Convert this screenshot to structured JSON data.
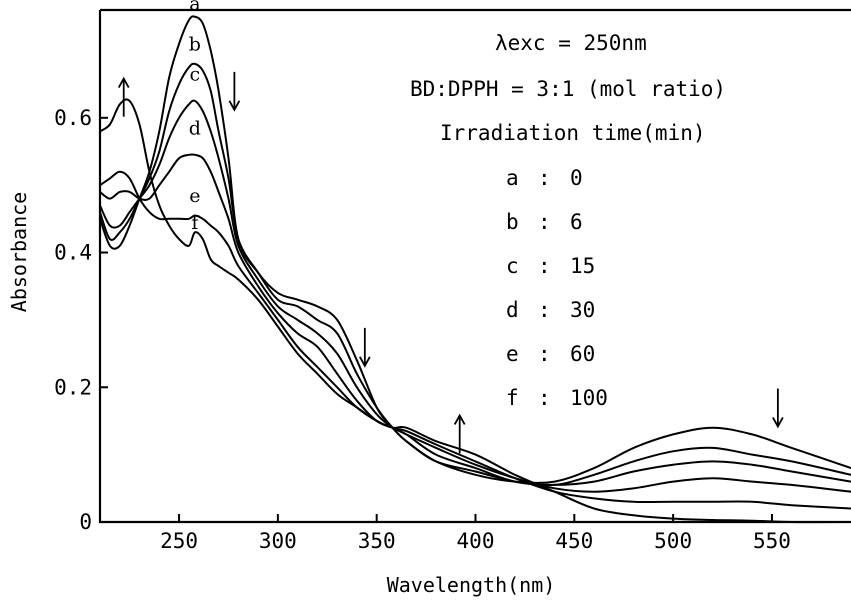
{
  "chart_data": {
    "type": "line",
    "xlabel": "Wavelength(nm)",
    "ylabel": "Absorbance",
    "xlim": [
      210,
      590
    ],
    "ylim": [
      0,
      0.76
    ],
    "x_ticks": [
      250,
      300,
      350,
      400,
      450,
      500,
      550
    ],
    "y_ticks": [
      0,
      0.2,
      0.4,
      0.6
    ],
    "y_tick_labels": [
      "0",
      "0.2",
      "0.4",
      "0.6"
    ],
    "grid": false,
    "legend_placement": "top-right",
    "annotations": {
      "excitation": "λexc = 250nm",
      "ratio": "BD:DPPH = 3:1 (mol ratio)",
      "legend_title": "Irradiation time(min)",
      "legend_entries": [
        {
          "label": "a",
          "sep": ":",
          "value": "0"
        },
        {
          "label": "b",
          "sep": ":",
          "value": "6"
        },
        {
          "label": "c",
          "sep": ":",
          "value": "15"
        },
        {
          "label": "d",
          "sep": ":",
          "value": "30"
        },
        {
          "label": "e",
          "sep": ":",
          "value": "60"
        },
        {
          "label": "f",
          "sep": ":",
          "value": "100"
        }
      ],
      "arrows": [
        {
          "x": 222,
          "y": 0.63,
          "direction": "up"
        },
        {
          "x": 278,
          "y": 0.64,
          "direction": "down"
        },
        {
          "x": 344,
          "y": 0.26,
          "direction": "down"
        },
        {
          "x": 392,
          "y": 0.13,
          "direction": "up"
        },
        {
          "x": 553,
          "y": 0.17,
          "direction": "down"
        }
      ]
    },
    "series": [
      {
        "name": "a",
        "label_at": [
          258,
          0.76
        ],
        "x": [
          210,
          215,
          220,
          225,
          230,
          235,
          240,
          245,
          250,
          255,
          258,
          262,
          266,
          270,
          275,
          280,
          290,
          300,
          310,
          320,
          330,
          340,
          350,
          358,
          365,
          380,
          400,
          420,
          440,
          460,
          480,
          500,
          520,
          540,
          560,
          590
        ],
        "y": [
          0.45,
          0.41,
          0.41,
          0.44,
          0.48,
          0.52,
          0.58,
          0.66,
          0.71,
          0.745,
          0.75,
          0.74,
          0.7,
          0.64,
          0.54,
          0.42,
          0.37,
          0.34,
          0.33,
          0.32,
          0.3,
          0.24,
          0.17,
          0.14,
          0.12,
          0.09,
          0.07,
          0.06,
          0.06,
          0.08,
          0.11,
          0.13,
          0.14,
          0.13,
          0.11,
          0.08
        ]
      },
      {
        "name": "b",
        "label_at": [
          258,
          0.7
        ],
        "x": [
          210,
          215,
          220,
          225,
          230,
          235,
          240,
          245,
          250,
          255,
          258,
          262,
          266,
          270,
          275,
          280,
          290,
          300,
          310,
          320,
          330,
          340,
          350,
          358,
          365,
          380,
          400,
          420,
          440,
          460,
          480,
          500,
          520,
          540,
          560,
          590
        ],
        "y": [
          0.46,
          0.42,
          0.43,
          0.45,
          0.48,
          0.51,
          0.55,
          0.61,
          0.65,
          0.675,
          0.68,
          0.67,
          0.64,
          0.58,
          0.51,
          0.42,
          0.37,
          0.33,
          0.32,
          0.3,
          0.28,
          0.22,
          0.17,
          0.14,
          0.12,
          0.09,
          0.075,
          0.06,
          0.055,
          0.07,
          0.09,
          0.105,
          0.11,
          0.1,
          0.09,
          0.07
        ]
      },
      {
        "name": "c",
        "label_at": [
          258,
          0.655
        ],
        "x": [
          210,
          215,
          220,
          225,
          230,
          235,
          240,
          245,
          250,
          255,
          258,
          262,
          266,
          270,
          275,
          280,
          290,
          300,
          310,
          320,
          330,
          340,
          350,
          358,
          365,
          380,
          400,
          420,
          440,
          460,
          480,
          500,
          520,
          540,
          560,
          590
        ],
        "y": [
          0.47,
          0.44,
          0.44,
          0.46,
          0.48,
          0.5,
          0.53,
          0.57,
          0.6,
          0.62,
          0.625,
          0.61,
          0.58,
          0.54,
          0.48,
          0.41,
          0.36,
          0.32,
          0.3,
          0.28,
          0.25,
          0.2,
          0.16,
          0.14,
          0.13,
          0.1,
          0.08,
          0.06,
          0.055,
          0.06,
          0.075,
          0.085,
          0.09,
          0.085,
          0.075,
          0.06
        ]
      },
      {
        "name": "d",
        "label_at": [
          258,
          0.575
        ],
        "x": [
          210,
          215,
          220,
          225,
          230,
          235,
          240,
          245,
          250,
          255,
          258,
          262,
          266,
          270,
          275,
          280,
          290,
          300,
          310,
          320,
          330,
          340,
          350,
          358,
          365,
          380,
          400,
          420,
          440,
          460,
          480,
          500,
          520,
          540,
          560,
          590
        ],
        "y": [
          0.49,
          0.48,
          0.49,
          0.49,
          0.48,
          0.48,
          0.5,
          0.52,
          0.54,
          0.545,
          0.545,
          0.54,
          0.52,
          0.49,
          0.45,
          0.4,
          0.35,
          0.31,
          0.28,
          0.26,
          0.22,
          0.18,
          0.15,
          0.14,
          0.13,
          0.11,
          0.085,
          0.065,
          0.05,
          0.045,
          0.05,
          0.06,
          0.065,
          0.06,
          0.055,
          0.045
        ]
      },
      {
        "name": "e",
        "label_at": [
          258,
          0.475
        ],
        "x": [
          210,
          215,
          220,
          225,
          230,
          235,
          240,
          245,
          250,
          255,
          258,
          262,
          266,
          270,
          275,
          280,
          290,
          300,
          310,
          320,
          330,
          340,
          350,
          358,
          365,
          380,
          400,
          420,
          440,
          460,
          480,
          500,
          520,
          540,
          560,
          590
        ],
        "y": [
          0.5,
          0.51,
          0.52,
          0.51,
          0.48,
          0.46,
          0.45,
          0.45,
          0.45,
          0.45,
          0.455,
          0.45,
          0.44,
          0.43,
          0.41,
          0.38,
          0.34,
          0.3,
          0.26,
          0.23,
          0.2,
          0.17,
          0.15,
          0.14,
          0.135,
          0.115,
          0.09,
          0.065,
          0.045,
          0.035,
          0.03,
          0.03,
          0.03,
          0.03,
          0.025,
          0.02
        ]
      },
      {
        "name": "f",
        "label_at": [
          258,
          0.435
        ],
        "x": [
          210,
          215,
          220,
          225,
          230,
          235,
          240,
          245,
          250,
          255,
          258,
          262,
          266,
          270,
          275,
          280,
          290,
          300,
          310,
          320,
          330,
          340,
          350,
          358,
          365,
          380,
          400,
          420,
          440,
          460,
          480,
          500,
          520,
          540,
          560,
          590
        ],
        "y": [
          0.58,
          0.59,
          0.62,
          0.625,
          0.59,
          0.52,
          0.47,
          0.44,
          0.42,
          0.41,
          0.43,
          0.42,
          0.39,
          0.38,
          0.37,
          0.36,
          0.33,
          0.29,
          0.25,
          0.22,
          0.19,
          0.17,
          0.15,
          0.14,
          0.14,
          0.12,
          0.1,
          0.07,
          0.045,
          0.02,
          0.01,
          0.005,
          0.003,
          0.002,
          0.0,
          0.0
        ]
      }
    ]
  }
}
